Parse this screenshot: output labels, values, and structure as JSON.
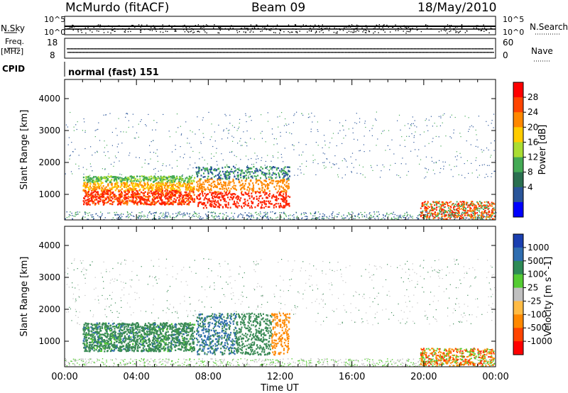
{
  "header": {
    "station": "McMurdo (fitACF)",
    "beam": "Beam 09",
    "date": "18/May/2010"
  },
  "top_panels": {
    "nsky_label": "N.Sky",
    "nsearch_label": "N.Search",
    "noise_ticks": [
      "10^5",
      "10^0"
    ],
    "freq_label": "Freq.",
    "freq_unit": "[MHz]",
    "freq_ticks": [
      "18",
      "8"
    ],
    "nave_ticks": [
      "60",
      "0"
    ],
    "nave_label": "Nave",
    "cpid_label": "CPID",
    "cpid_text": "normal (fast) 151"
  },
  "chart_data": [
    {
      "type": "heatmap",
      "name": "power-panel",
      "ylabel": "Slant Range [km]",
      "xlabel": "",
      "ylim": [
        200,
        4600
      ],
      "yticks": [
        1000,
        2000,
        3000,
        4000
      ],
      "xticks": [
        "00:00",
        "04:00",
        "08:00",
        "12:00",
        "16:00",
        "20:00",
        "00:00"
      ],
      "colorbar": {
        "label": "Power [dB]",
        "ticks": [
          "28",
          "24",
          "20",
          "16",
          "12",
          "8",
          "4"
        ],
        "colors": [
          "#ff0000",
          "#ff4400",
          "#ff8800",
          "#ffcc00",
          "#aadd33",
          "#44aa55",
          "#2a6f50",
          "#2a5599",
          "#0000ff"
        ]
      }
    },
    {
      "type": "heatmap",
      "name": "velocity-panel",
      "ylabel": "Slant Range [km]",
      "xlabel": "Time UT",
      "ylim": [
        200,
        4600
      ],
      "yticks": [
        1000,
        2000,
        3000,
        4000
      ],
      "xticks": [
        "00:00",
        "04:00",
        "08:00",
        "12:00",
        "16:00",
        "20:00",
        "00:00"
      ],
      "colorbar": {
        "label": "Velocity [m s^-1]",
        "ticks": [
          "1000",
          "500",
          "100",
          "25",
          "-25",
          "-100",
          "-500",
          "-1000"
        ],
        "colors": [
          "#1a3fb0",
          "#2f6db0",
          "#2e8b57",
          "#55cc33",
          "#c0c0c0",
          "#ffbb44",
          "#ff8800",
          "#ff4400",
          "#ff0000"
        ]
      }
    }
  ]
}
